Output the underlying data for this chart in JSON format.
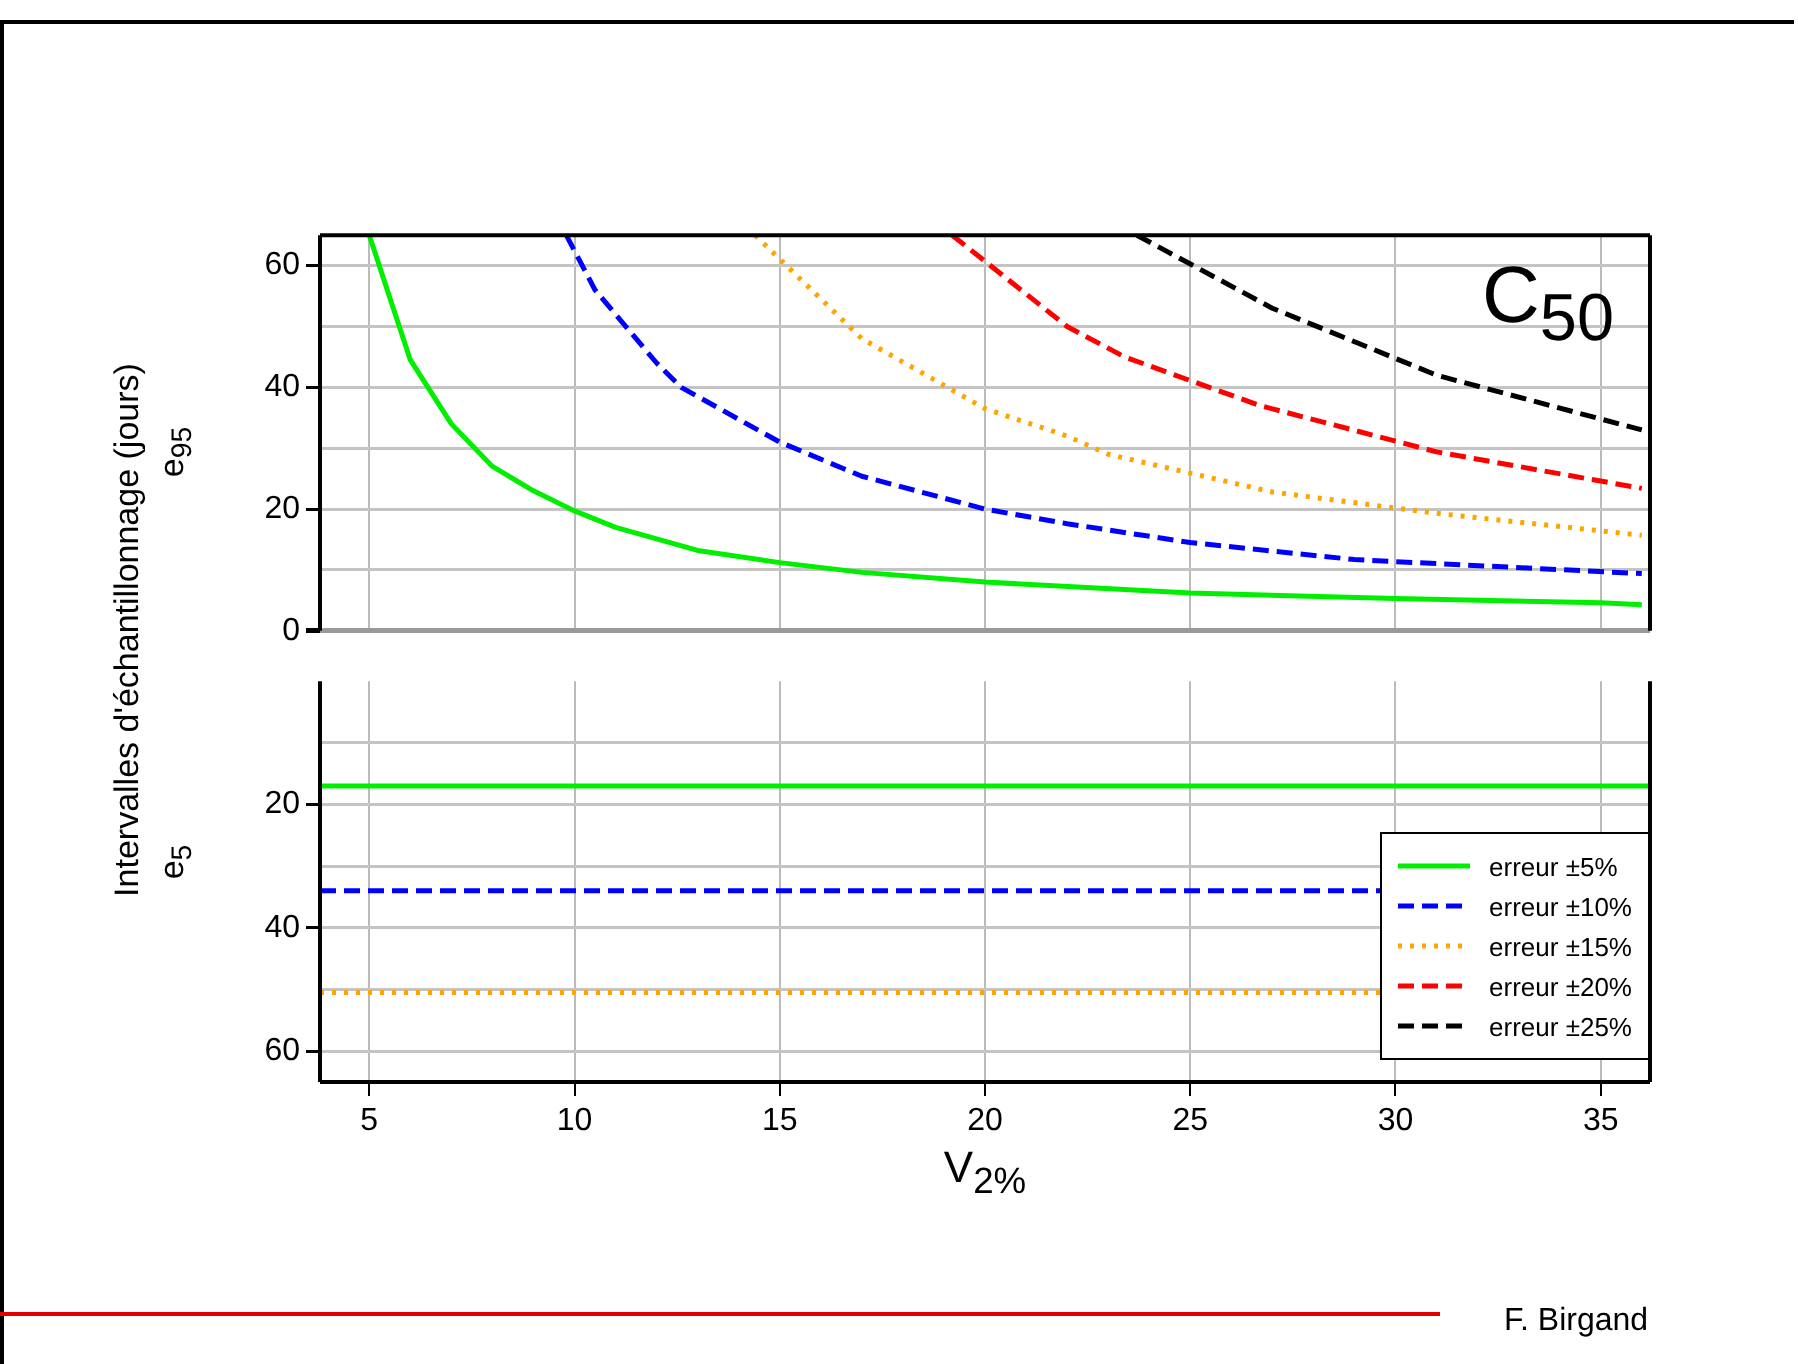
{
  "chart_data": [
    {
      "type": "line",
      "ylabel": "Intervalles d'échantillonnage (jours)",
      "annotations": [
        "C$_{50}$",
        "e$_{95}$"
      ],
      "xlim": [
        3.8,
        36.2
      ],
      "xticks": [
        5,
        10,
        15,
        20,
        25,
        30,
        35
      ],
      "ylim": [
        0,
        65
      ],
      "yticks": [
        0,
        {
          "value": 10,
          "label": null
        },
        20,
        {
          "value": 30,
          "label": null
        },
        40,
        {
          "value": 50,
          "label": null
        },
        60
      ],
      "tick_labels": "y",
      "grid": true,
      "legend": "bottom right",
      "marker": "none",
      "series": [
        {
          "name": "erreur ±5%",
          "color": "#00ee00",
          "line_style": "solid",
          "x": [
            5,
            6,
            7,
            8,
            9,
            10,
            11,
            13,
            15,
            17,
            20,
            25,
            30,
            35,
            36
          ],
          "values": [
            65,
            44.5,
            34,
            27,
            23,
            19.7,
            17,
            13.2,
            11.2,
            9.6,
            8,
            6.2,
            5.3,
            4.6,
            4.3
          ]
        },
        {
          "name": "erreur ±10%",
          "color": "#0000ff",
          "line_style": "dashed",
          "x": [
            9.8,
            10.5,
            12,
            12.6,
            15,
            17,
            20,
            22,
            25,
            29,
            36
          ],
          "values": [
            65,
            56,
            44,
            40,
            31,
            25.4,
            20,
            17.6,
            14.5,
            11.7,
            9.4
          ]
        },
        {
          "name": "erreur ±15%",
          "color": "#ffa500",
          "line_style": "dotted",
          "x": [
            14.4,
            17,
            20,
            22,
            23,
            27,
            31,
            36
          ],
          "values": [
            65,
            48,
            36.5,
            32,
            29,
            22.8,
            19.3,
            15.7
          ]
        },
        {
          "name": "erreur ±20%",
          "color": "#ff0000",
          "line_style": "dashed",
          "x": [
            19.2,
            22,
            23.4,
            26.7,
            31,
            36
          ],
          "values": [
            65,
            50,
            45,
            37,
            29.4,
            23.4
          ]
        },
        {
          "name": "erreur ±25%",
          "color": "#000000",
          "line_style": "dashed",
          "x": [
            23.7,
            27,
            31,
            36
          ],
          "values": [
            65,
            53,
            42,
            33
          ]
        }
      ]
    },
    {
      "type": "line",
      "xlabel": "V$_{2%}$",
      "annotations": [
        "e$_{5}$",
        "F. Birgand"
      ],
      "xlim": [
        3.8,
        36.2
      ],
      "xticks": [
        5,
        10,
        15,
        20,
        25,
        30,
        35
      ],
      "ylim": [
        65,
        0
      ],
      "yticks": [
        {
          "value": 10,
          "label": null
        },
        20,
        {
          "value": 30,
          "label": null
        },
        40,
        {
          "value": 50,
          "label": null
        },
        60
      ],
      "grid": true,
      "ref_lines": [
        {
          "axis": "y",
          "value": 17,
          "color": "#00ee00",
          "line_style": "solid"
        },
        {
          "axis": "y",
          "value": 34,
          "color": "#0000ff",
          "line_style": "dashed"
        },
        {
          "axis": "y",
          "value": 50.5,
          "color": "#ffa500",
          "line_style": "dotted"
        }
      ]
    }
  ]
}
